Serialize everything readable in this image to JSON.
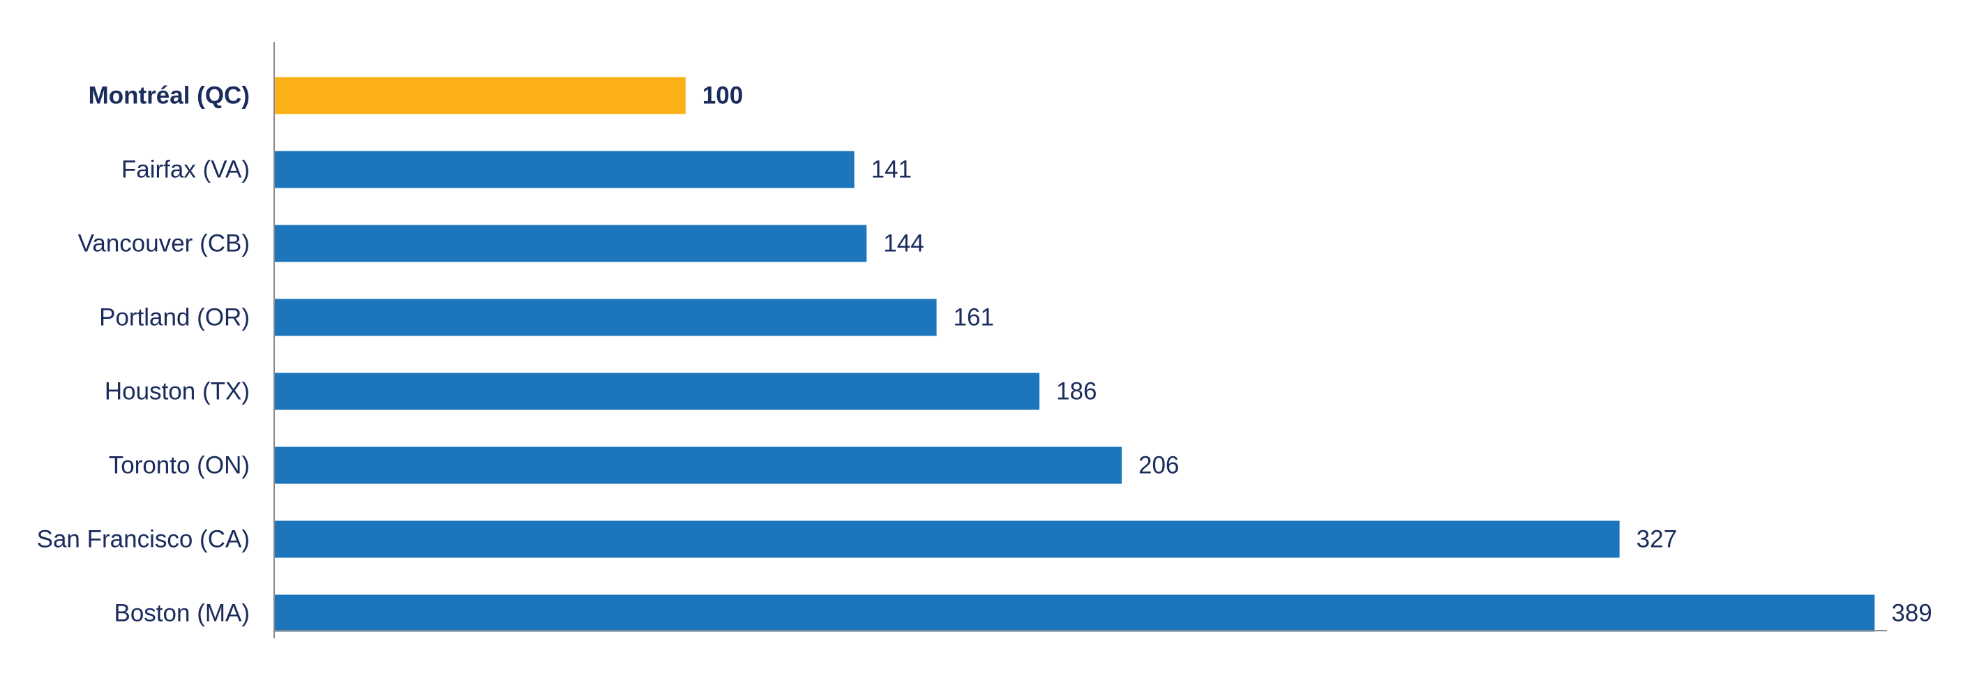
{
  "chart_data": {
    "type": "bar",
    "orientation": "horizontal",
    "categories": [
      "Montréal (QC)",
      "Fairfax (VA)",
      "Vancouver (CB)",
      "Portland (OR)",
      "Houston (TX)",
      "Toronto (ON)",
      "San Francisco (CA)",
      "Boston (MA)"
    ],
    "values": [
      100,
      141,
      144,
      161,
      186,
      206,
      327,
      389
    ],
    "highlight_index": 0,
    "title": "",
    "xlabel": "",
    "ylabel": "",
    "xlim": [
      0,
      400
    ],
    "grid": false,
    "legend": "none",
    "colors": {
      "bar": "#1d76bc",
      "highlight": "#fbb016",
      "text": "#1a2b5c",
      "axis": "#8a8a8a"
    }
  }
}
